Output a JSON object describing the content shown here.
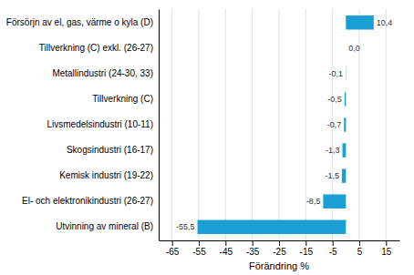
{
  "chart_data": {
    "type": "bar",
    "orientation": "horizontal",
    "categories": [
      "Utvinning av mineral (B)",
      "El- och elektronikindustri (26-27)",
      "Kemisk industri (19-22)",
      "Skogsindustri (16-17)",
      "Livsmedelsindustri (10-11)",
      "Tillverkning (C)",
      "Metallindustri (24-30, 33)",
      "Tillverkning (C) exkl. (26-27)",
      "Försörjn av el, gas, värme o kyla (D)"
    ],
    "values": [
      -55.5,
      -8.5,
      -1.5,
      -1.3,
      -0.7,
      -0.5,
      -0.1,
      0.0,
      10.4
    ],
    "value_labels": [
      "-55,5",
      "-8,5",
      "-1,5",
      "-1,3",
      "-0,7",
      "-0,5",
      "-0,1",
      "0,0",
      "10,4"
    ],
    "data_labels": true,
    "color": "#1a9fd4",
    "xlabel": "Förändring %",
    "xlim": [
      -70,
      20
    ],
    "xticks": [
      -65,
      -55,
      -45,
      -35,
      -25,
      -15,
      -5,
      5,
      15
    ],
    "grid": true
  }
}
